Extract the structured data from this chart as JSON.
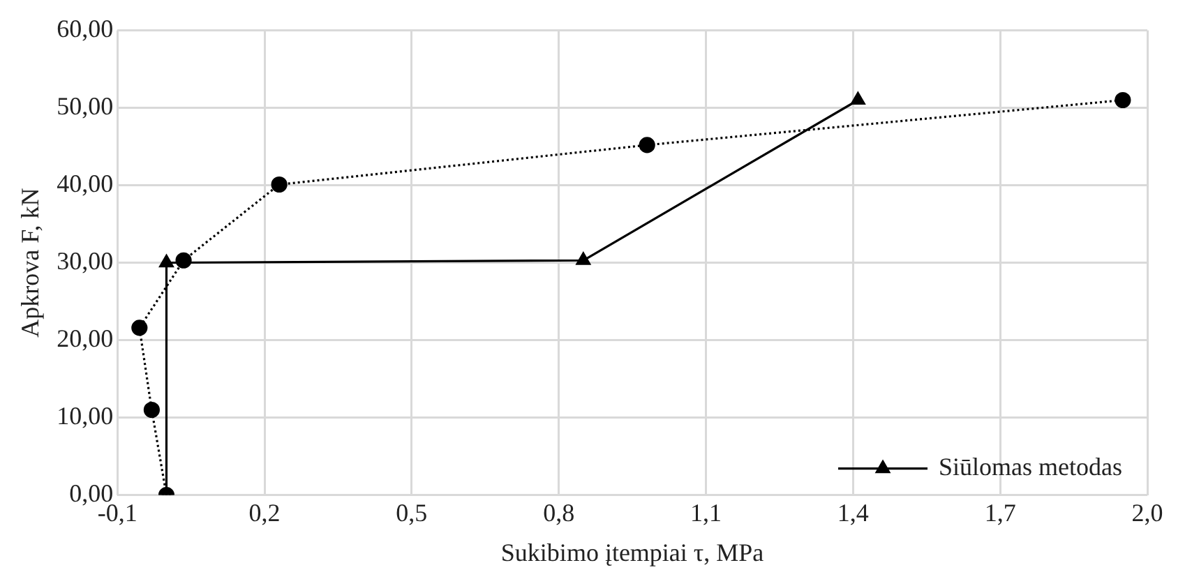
{
  "chart_data": {
    "type": "line",
    "xlabel": "Sukibimo įtempiai τ, MPa",
    "ylabel": "Apkrova F, kN",
    "series": [
      {
        "color": "#000000",
        "marker": "circle",
        "line_style": "dotted",
        "x": [
          0.0,
          -0.03,
          -0.055,
          0.035,
          0.23,
          0.98,
          1.95
        ],
        "values": [
          0,
          11,
          21.6,
          30.3,
          40.1,
          45.2,
          51.0
        ]
      },
      {
        "name": "Siūlomas metodas",
        "color": "#000000",
        "marker": "triangle",
        "line_style": "solid",
        "x": [
          0.0,
          0.0,
          0.85,
          1.41
        ],
        "values": [
          0,
          30,
          30.3,
          51.0
        ]
      }
    ],
    "xlim": [
      -0.1,
      2.0
    ],
    "xticks": [
      {
        "value": -0.1,
        "label": "-0,1"
      },
      {
        "value": 0.2,
        "label": "0,2"
      },
      {
        "value": 0.5,
        "label": "0,5"
      },
      {
        "value": 0.8,
        "label": "0,8"
      },
      {
        "value": 1.1,
        "label": "1,1"
      },
      {
        "value": 1.4,
        "label": "1,4"
      },
      {
        "value": 1.7,
        "label": "1,7"
      },
      {
        "value": 2.0,
        "label": "2,0"
      }
    ],
    "ylim": [
      0,
      60
    ],
    "yticks": [
      {
        "value": 0,
        "label": "0,00"
      },
      {
        "value": 10,
        "label": "10,00"
      },
      {
        "value": 20,
        "label": "20,00"
      },
      {
        "value": 30,
        "label": "30,00"
      },
      {
        "value": 40,
        "label": "40,00"
      },
      {
        "value": 50,
        "label": "50,00"
      },
      {
        "value": 60,
        "label": "60,00"
      }
    ],
    "grid": true,
    "legend": "bottom right"
  }
}
